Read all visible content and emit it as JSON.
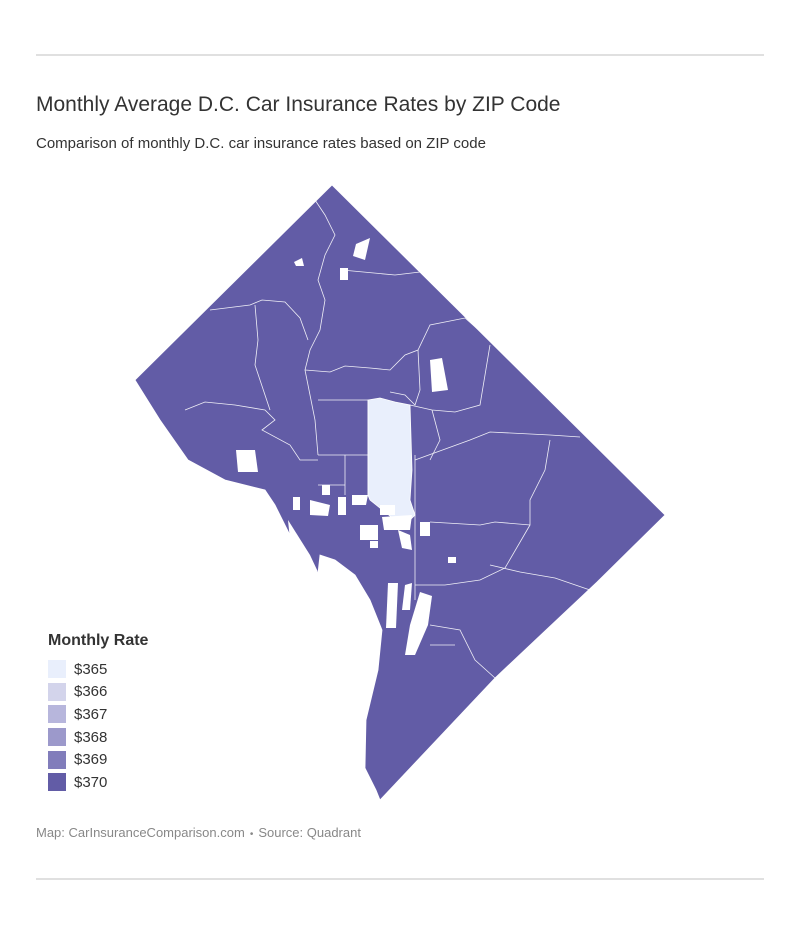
{
  "title": "Monthly Average D.C. Car Insurance Rates by ZIP Code",
  "subtitle": "Comparison of monthly D.C. car insurance rates based on ZIP code",
  "legend": {
    "title": "Monthly Rate",
    "items": [
      {
        "label": "$365",
        "color": "#e9effc"
      },
      {
        "label": "$366",
        "color": "#d3d4eb"
      },
      {
        "label": "$367",
        "color": "#b7b6dc"
      },
      {
        "label": "$368",
        "color": "#9c99cb"
      },
      {
        "label": "$369",
        "color": "#817dbb"
      },
      {
        "label": "$370",
        "color": "#625ca6"
      }
    ]
  },
  "map": {
    "type": "choropleth",
    "region": "Washington, D.C.",
    "majority_color": "#625ca6",
    "lowest_color": "#e9effc"
  },
  "footer": {
    "map_credit": "Map: CarInsuranceComparison.com",
    "separator": "•",
    "source": "Source: Quadrant"
  }
}
